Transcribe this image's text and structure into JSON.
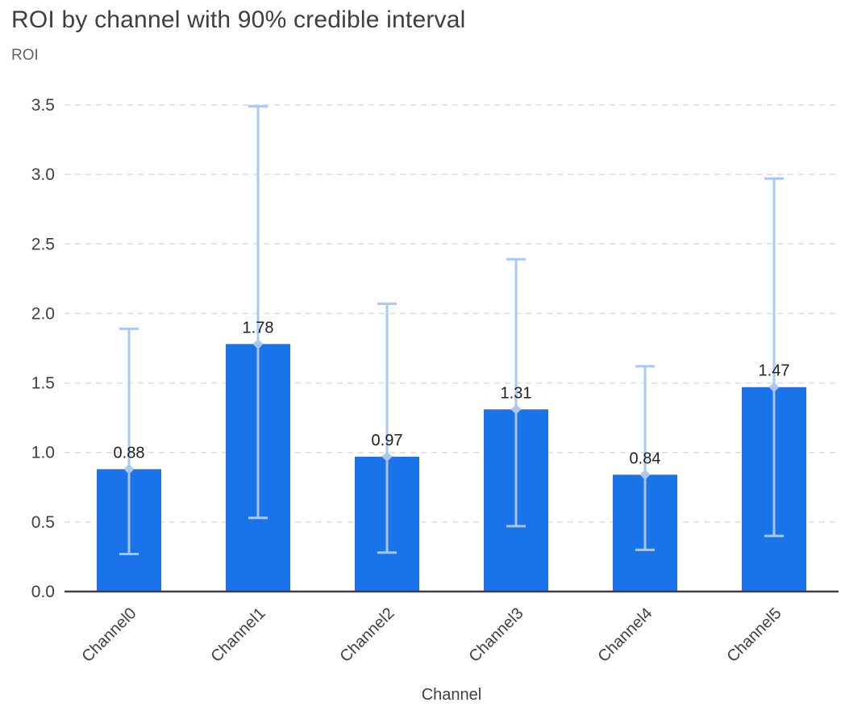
{
  "chart_data": {
    "type": "bar",
    "title": "ROI by channel with 90% credible interval",
    "ylabel": "ROI",
    "xlabel": "Channel",
    "categories": [
      "Channel0",
      "Channel1",
      "Channel2",
      "Channel3",
      "Channel4",
      "Channel5"
    ],
    "values": [
      0.88,
      1.78,
      0.97,
      1.31,
      0.84,
      1.47
    ],
    "value_labels": [
      "0.88",
      "1.78",
      "0.97",
      "1.31",
      "0.84",
      "1.47"
    ],
    "error_low": [
      0.27,
      0.53,
      0.28,
      0.47,
      0.3,
      0.4
    ],
    "error_high": [
      1.89,
      3.49,
      2.07,
      2.39,
      1.62,
      2.97
    ],
    "interval": "90% credible interval",
    "yticks": [
      0.0,
      0.5,
      1.0,
      1.5,
      2.0,
      2.5,
      3.0,
      3.5
    ],
    "ylim": [
      0,
      3.5
    ],
    "grid": "dashed horizontal",
    "legend": "none",
    "bar_color": "#1a73e8",
    "error_color": "#a8c7fa",
    "axis_color": "#3c4043",
    "grid_color": "#dadce0",
    "value_label_color": "#202124",
    "title_color": "#3c4043",
    "axis_title_color": "#5f6368"
  }
}
